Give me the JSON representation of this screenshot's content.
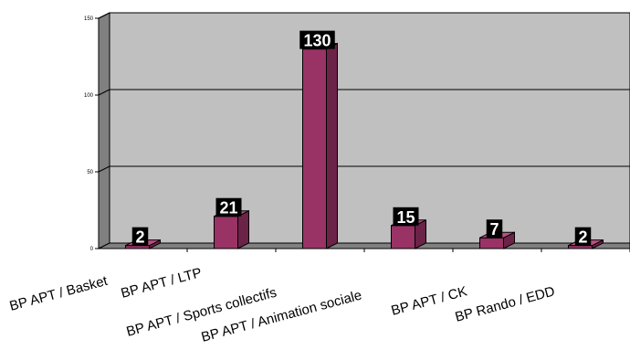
{
  "chart_data": {
    "type": "bar",
    "categories": [
      "BP APT / Basket",
      "BP APT / LTP",
      "BP APT / Sports collectifs",
      "BP APT / Animation sociale",
      "BP APT / CK",
      "BP Rando / EDD"
    ],
    "values": [
      2,
      21,
      130,
      15,
      7,
      2
    ],
    "data_labels": [
      "2",
      "21",
      "130",
      "15",
      "7",
      "2"
    ],
    "title": "",
    "xlabel": "",
    "ylabel": "",
    "ylim": [
      0,
      150
    ],
    "yticks": [
      "0",
      "50",
      "100",
      "150"
    ],
    "grid": true,
    "style": "3d-column",
    "colors": {
      "bar_front": "#993366",
      "bar_side": "#6b2347",
      "bar_top": "#b8507f",
      "plot_wall": "#c0c0c0",
      "wall_side": "#808080",
      "label_background": "#000000",
      "label_text": "#ffffff"
    }
  }
}
